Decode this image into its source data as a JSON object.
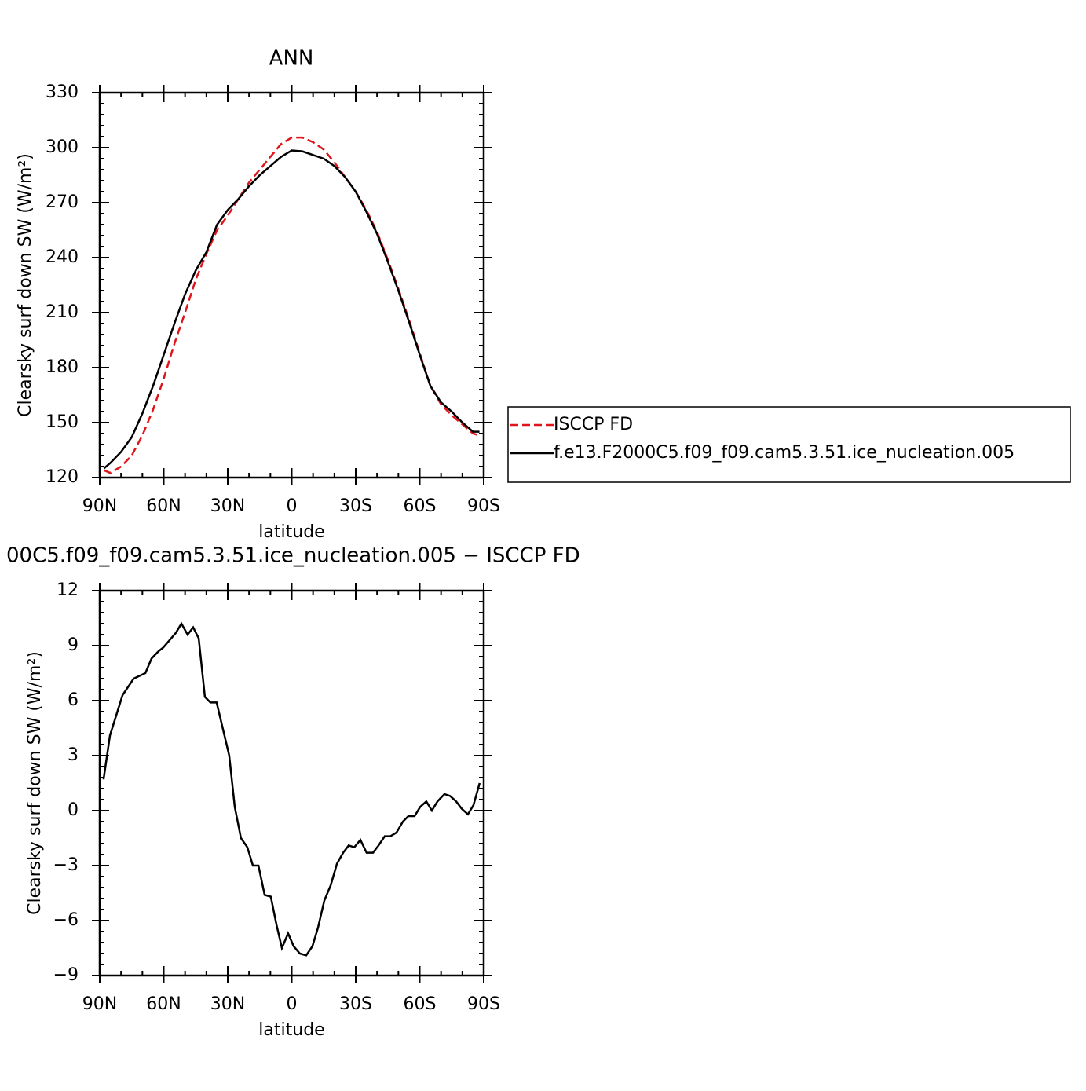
{
  "chart_data": [
    {
      "type": "line",
      "title": "ANN",
      "xlabel": "latitude",
      "ylabel": "Clearsky surf down SW (W/m²)",
      "x": [
        88,
        85,
        80,
        75,
        70,
        65,
        60,
        55,
        50,
        45,
        40,
        35,
        30,
        25,
        20,
        15,
        10,
        5,
        0,
        -5,
        -10,
        -15,
        -20,
        -25,
        -30,
        -35,
        -40,
        -45,
        -50,
        -55,
        -60,
        -65,
        -70,
        -75,
        -80,
        -85,
        -88
      ],
      "series": [
        {
          "name": "ISCCP FD",
          "color": "#e0151b",
          "dash": true,
          "values": [
            124,
            122.5,
            126,
            132,
            143,
            157,
            174,
            193,
            210,
            228,
            242,
            255,
            263,
            272,
            281,
            288,
            295,
            302,
            305.5,
            305.5,
            303,
            299,
            292,
            284,
            276,
            266,
            254,
            239,
            223,
            206,
            188,
            170,
            160,
            154,
            149,
            144,
            143
          ]
        },
        {
          "name": "f.e13.F2000C5.f09_f09.cam5.3.51.ice_nucleation.005",
          "color": "#000000",
          "dash": false,
          "values": [
            125,
            128,
            134,
            142,
            155,
            170,
            187,
            204,
            220,
            233,
            243,
            258,
            266,
            272,
            279,
            285,
            290,
            295,
            298.5,
            298,
            296,
            294,
            290,
            284,
            276,
            265,
            253,
            238,
            222,
            205,
            187,
            170,
            161,
            156,
            150,
            145,
            145
          ]
        }
      ],
      "xlim": [
        90,
        -90
      ],
      "xticks": [
        {
          "value": 90,
          "label": "90N"
        },
        {
          "value": 60,
          "label": "60N"
        },
        {
          "value": 30,
          "label": "30N"
        },
        0,
        {
          "value": -30,
          "label": "30S"
        },
        {
          "value": -60,
          "label": "60S"
        },
        {
          "value": -90,
          "label": "90S"
        }
      ],
      "ylim": [
        120,
        330
      ],
      "yticks": [
        120,
        150,
        180,
        210,
        240,
        270,
        300,
        330
      ],
      "legend": "right"
    },
    {
      "type": "line",
      "title": "00C5.f09_f09.cam5.3.51.ice_nucleation.005 − ISCCP FD",
      "xlabel": "latitude",
      "ylabel": "Clearsky surf down SW (W/m²)",
      "x": [
        88.2,
        85.2,
        79.3,
        74.1,
        68.6,
        65.7,
        62.4,
        60.2,
        54.3,
        51.7,
        48.8,
        46.2,
        43.6,
        40.7,
        38.1,
        35.2,
        29.3,
        26.7,
        23.8,
        20.8,
        18.2,
        15.6,
        12.7,
        9.8,
        7.2,
        4.6,
        1.7,
        -0.9,
        -3.8,
        -6.8,
        -9.7,
        -12.3,
        -15.3,
        -18.2,
        -21.2,
        -24.1,
        -26.7,
        -29.3,
        -32.2,
        -35.1,
        -38.1,
        -40.7,
        -43.6,
        -46.2,
        -49.1,
        -52.1,
        -54.7,
        -57.6,
        -60.2,
        -63.1,
        -65.7,
        -68.3,
        -71.6,
        -74.2,
        -77.1,
        -79.7,
        -82.6,
        -85.2,
        -88.1
      ],
      "series": [
        {
          "color": "#000000",
          "dash": false,
          "values": [
            1.7,
            4.1,
            6.3,
            7.2,
            7.5,
            8.3,
            8.7,
            8.9,
            9.7,
            10.2,
            9.6,
            10.0,
            9.4,
            6.2,
            5.9,
            5.9,
            3.0,
            0.2,
            -1.5,
            -2.0,
            -3.0,
            -3.0,
            -4.6,
            -4.7,
            -6.2,
            -7.5,
            -6.7,
            -7.4,
            -7.8,
            -7.9,
            -7.4,
            -6.4,
            -4.9,
            -4.1,
            -2.9,
            -2.3,
            -1.9,
            -2.0,
            -1.6,
            -2.3,
            -2.3,
            -1.9,
            -1.4,
            -1.4,
            -1.2,
            -0.6,
            -0.3,
            -0.3,
            0.2,
            0.5,
            0.0,
            0.5,
            0.9,
            0.8,
            0.5,
            0.1,
            -0.2,
            0.3,
            1.5
          ]
        }
      ],
      "xlim": [
        90,
        -90
      ],
      "xticks": [
        {
          "value": 90,
          "label": "90N"
        },
        {
          "value": 60,
          "label": "60N"
        },
        {
          "value": 30,
          "label": "30N"
        },
        0,
        {
          "value": -30,
          "label": "30S"
        },
        {
          "value": -60,
          "label": "60S"
        },
        {
          "value": -90,
          "label": "90S"
        }
      ],
      "ylim": [
        -9,
        12
      ],
      "yticks": [
        {
          "value": -9,
          "label": "−9"
        },
        {
          "value": -6,
          "label": "−6"
        },
        {
          "value": -3,
          "label": "−3"
        },
        0,
        3,
        6,
        9,
        12
      ]
    }
  ]
}
